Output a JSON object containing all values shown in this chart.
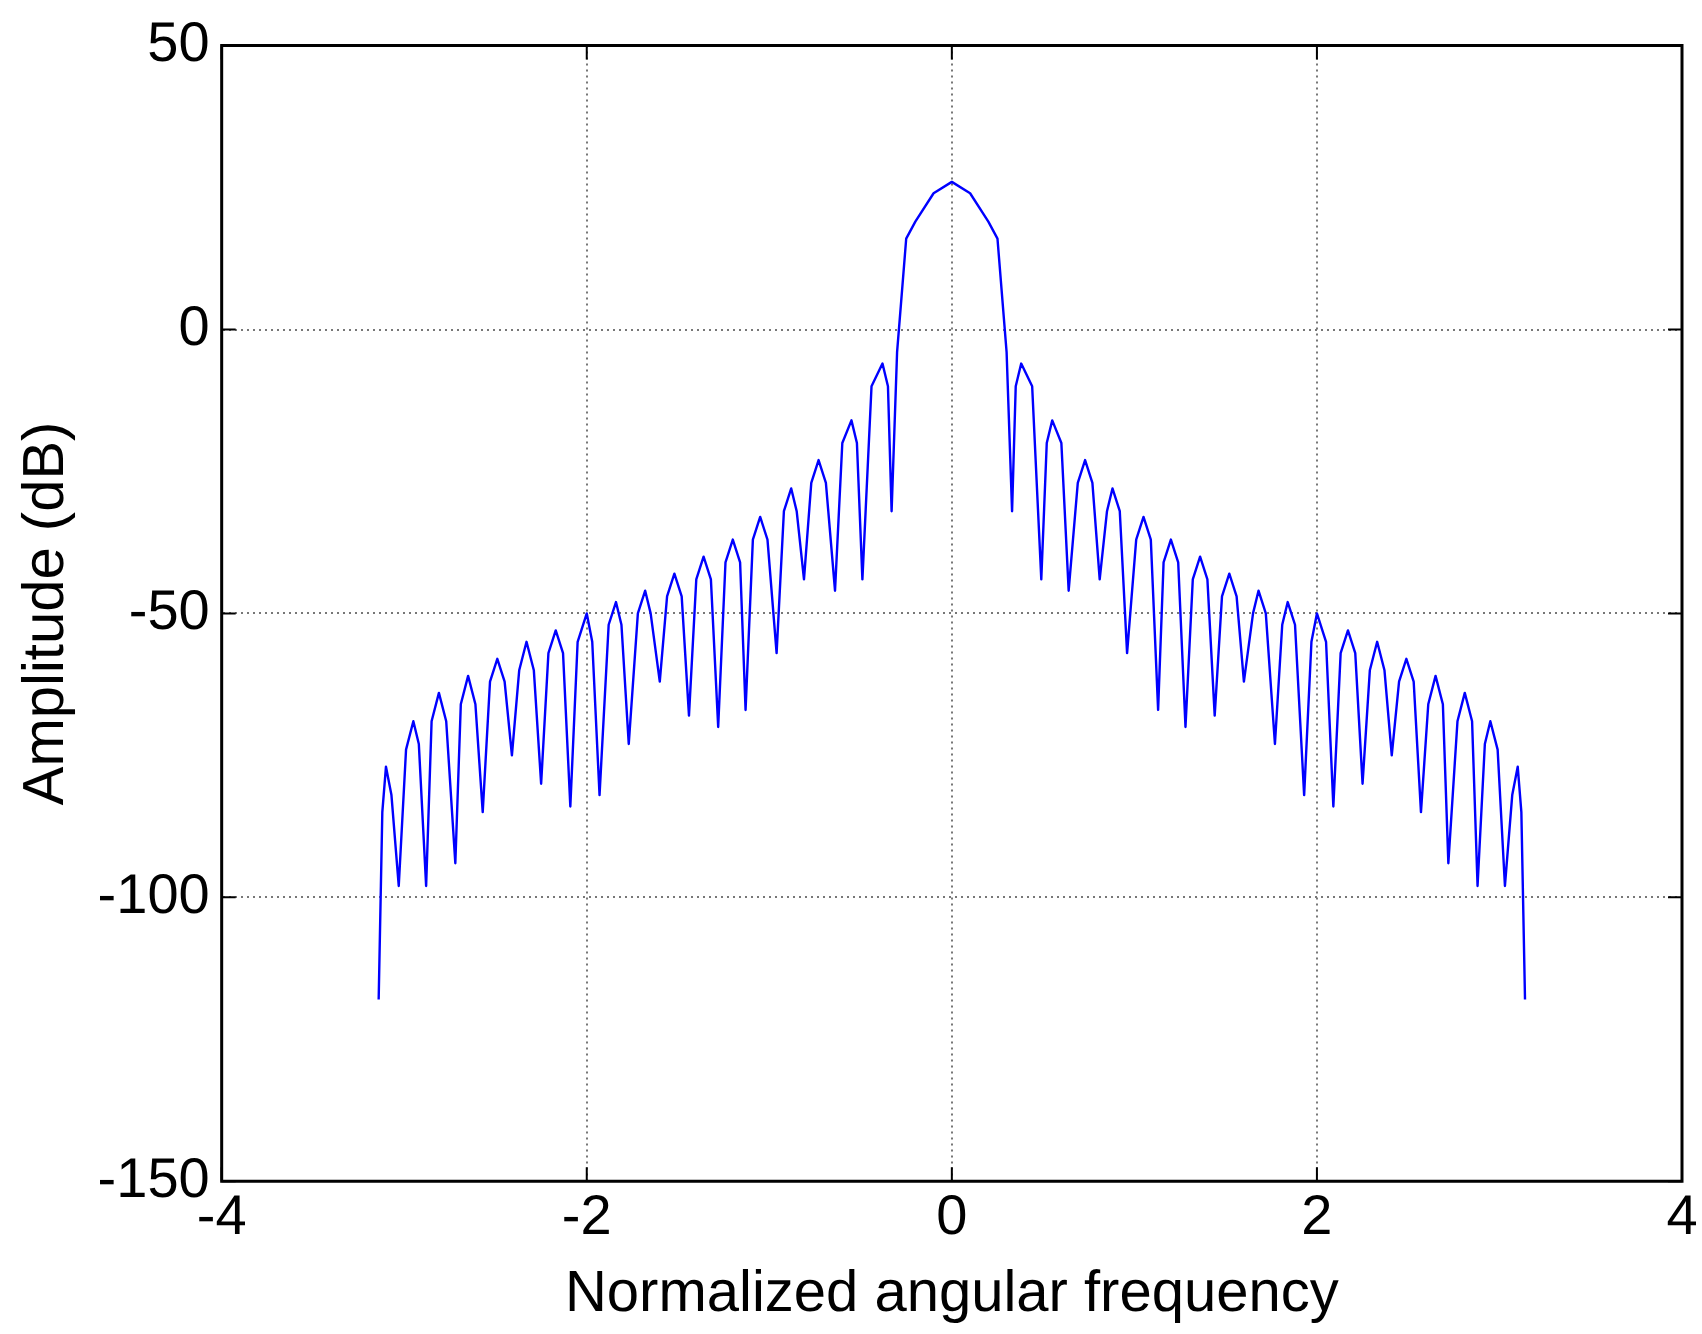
{
  "chart_data": {
    "type": "line",
    "xlabel": "Normalized angular frequency",
    "ylabel": "Amplitude (dB)",
    "xlim": [
      -4,
      4
    ],
    "xticks": [
      -4,
      -2,
      0,
      2,
      4
    ],
    "ylim": [
      -150,
      50
    ],
    "yticks": [
      -150,
      -100,
      -50,
      0,
      50
    ],
    "grid": true,
    "series": [
      {
        "color": "#0000ff",
        "x": [
          -3.14,
          -3.12,
          -3.1,
          -3.07,
          -3.03,
          -2.99,
          -2.95,
          -2.92,
          -2.88,
          -2.85,
          -2.81,
          -2.77,
          -2.72,
          -2.69,
          -2.65,
          -2.61,
          -2.57,
          -2.53,
          -2.49,
          -2.45,
          -2.41,
          -2.37,
          -2.33,
          -2.29,
          -2.25,
          -2.21,
          -2.17,
          -2.13,
          -2.09,
          -2.05,
          -2,
          -1.97,
          -1.93,
          -1.88,
          -1.84,
          -1.81,
          -1.77,
          -1.72,
          -1.68,
          -1.65,
          -1.6,
          -1.56,
          -1.52,
          -1.48,
          -1.44,
          -1.4,
          -1.36,
          -1.32,
          -1.28,
          -1.24,
          -1.2,
          -1.16,
          -1.13,
          -1.09,
          -1.05,
          -1.01,
          -0.96,
          -0.92,
          -0.88,
          -0.85,
          -0.81,
          -0.77,
          -0.73,
          -0.69,
          -0.64,
          -0.6,
          -0.55,
          -0.52,
          -0.49,
          -0.44,
          -0.38,
          -0.35,
          -0.33,
          -0.3,
          -0.28,
          -0.25,
          -0.2,
          -0.1,
          0,
          0.1,
          0.2,
          0.25,
          0.28,
          0.3,
          0.33,
          0.35,
          0.38,
          0.44,
          0.49,
          0.52,
          0.55,
          0.6,
          0.64,
          0.69,
          0.73,
          0.77,
          0.81,
          0.85,
          0.88,
          0.92,
          0.96,
          1.01,
          1.05,
          1.09,
          1.13,
          1.16,
          1.2,
          1.24,
          1.28,
          1.32,
          1.36,
          1.4,
          1.44,
          1.48,
          1.52,
          1.56,
          1.6,
          1.65,
          1.68,
          1.72,
          1.77,
          1.81,
          1.84,
          1.88,
          1.93,
          1.97,
          2,
          2.05,
          2.09,
          2.13,
          2.17,
          2.21,
          2.25,
          2.29,
          2.33,
          2.37,
          2.41,
          2.45,
          2.49,
          2.53,
          2.57,
          2.61,
          2.65,
          2.69,
          2.72,
          2.77,
          2.81,
          2.85,
          2.88,
          2.92,
          2.95,
          2.99,
          3.03,
          3.07,
          3.1,
          3.12,
          3.14
        ],
        "values": [
          -118,
          -85,
          -77,
          -82,
          -98,
          -74,
          -69,
          -73,
          -98,
          -69,
          -64,
          -69,
          -94,
          -66,
          -61,
          -66,
          -85,
          -62,
          -58,
          -62,
          -75,
          -60,
          -55,
          -60,
          -80,
          -57,
          -53,
          -57,
          -84,
          -55,
          -50,
          -55,
          -82,
          -52,
          -48,
          -52,
          -73,
          -50,
          -46,
          -50,
          -62,
          -47,
          -43,
          -47,
          -68,
          -44,
          -40,
          -44,
          -70,
          -41,
          -37,
          -41,
          -67,
          -37,
          -33,
          -37,
          -57,
          -32,
          -28,
          -32,
          -44,
          -27,
          -23,
          -27,
          -46,
          -20,
          -16,
          -20,
          -44,
          -10,
          -6,
          -10,
          -32,
          -4,
          4,
          16,
          19,
          24,
          26,
          24,
          19,
          16,
          4,
          -4,
          -32,
          -10,
          -6,
          -10,
          -44,
          -20,
          -16,
          -20,
          -46,
          -27,
          -23,
          -27,
          -44,
          -32,
          -28,
          -32,
          -57,
          -37,
          -33,
          -37,
          -67,
          -41,
          -37,
          -41,
          -70,
          -44,
          -40,
          -44,
          -68,
          -47,
          -43,
          -47,
          -62,
          -50,
          -46,
          -50,
          -73,
          -52,
          -48,
          -52,
          -82,
          -55,
          -50,
          -55,
          -84,
          -57,
          -53,
          -57,
          -80,
          -60,
          -55,
          -60,
          -75,
          -62,
          -58,
          -62,
          -85,
          -66,
          -61,
          -66,
          -94,
          -69,
          -64,
          -69,
          -98,
          -73,
          -69,
          -74,
          -98,
          -82,
          -77,
          -85,
          -118
        ]
      }
    ]
  }
}
